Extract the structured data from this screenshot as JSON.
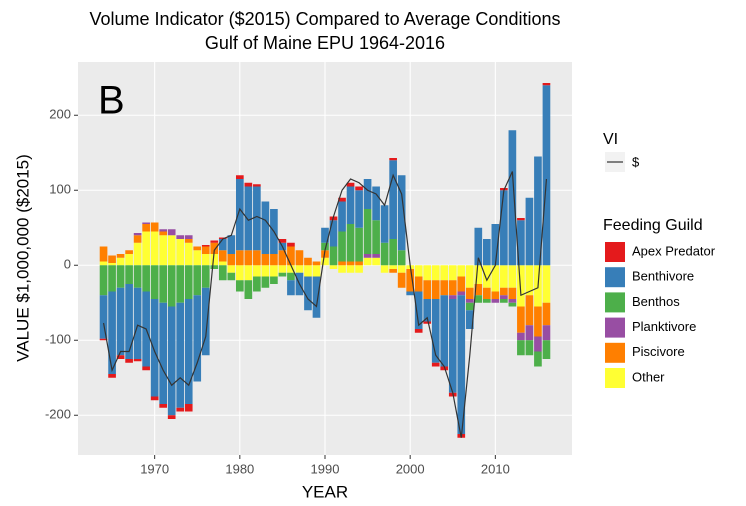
{
  "chart_data": {
    "type": "bar",
    "title": "Volume Indicator ($2015) Compared to Average Conditions",
    "subtitle": "Gulf of Maine EPU 1964-2016",
    "annotation": "B",
    "x_label": "YEAR",
    "y_label": "VALUE $1,000,000 ($2015)",
    "x": [
      1964,
      1965,
      1966,
      1967,
      1968,
      1969,
      1970,
      1971,
      1972,
      1973,
      1974,
      1975,
      1976,
      1977,
      1978,
      1979,
      1980,
      1981,
      1982,
      1983,
      1984,
      1985,
      1986,
      1987,
      1988,
      1989,
      1990,
      1991,
      1992,
      1993,
      1994,
      1995,
      1996,
      1997,
      1998,
      1999,
      2000,
      2001,
      2002,
      2003,
      2004,
      2005,
      2006,
      2007,
      2008,
      2009,
      2010,
      2011,
      2012,
      2013,
      2014,
      2015,
      2016
    ],
    "xlim": [
      1961,
      2019
    ],
    "xticks": [
      1970,
      1980,
      1990,
      2000,
      2010
    ],
    "ylim": [
      -253,
      271
    ],
    "yticks": [
      -200,
      -100,
      0,
      100,
      200
    ],
    "grid": true,
    "stacked": true,
    "legend_title": "Feeding Guild",
    "series": [
      {
        "name": "Apex Predator",
        "color": "#e41a1c",
        "values": [
          -2,
          -5,
          -5,
          -5,
          -3,
          -5,
          -5,
          -5,
          -5,
          -5,
          -10,
          0,
          2,
          3,
          2,
          0,
          5,
          5,
          3,
          0,
          0,
          5,
          5,
          0,
          0,
          0,
          0,
          5,
          5,
          5,
          5,
          0,
          0,
          0,
          3,
          0,
          0,
          -5,
          -3,
          -5,
          -5,
          -5,
          -5,
          0,
          0,
          0,
          0,
          3,
          0,
          3,
          0,
          0,
          3
        ]
      },
      {
        "name": "Benthivore",
        "color": "#377eb8",
        "values": [
          -58,
          -110,
          -90,
          -100,
          -95,
          -100,
          -130,
          -135,
          -145,
          -140,
          -140,
          -115,
          -90,
          0,
          15,
          25,
          95,
          85,
          85,
          70,
          60,
          10,
          -20,
          -30,
          -45,
          -55,
          20,
          35,
          40,
          50,
          50,
          40,
          45,
          50,
          105,
          100,
          -5,
          -50,
          -30,
          -85,
          -95,
          -125,
          -185,
          -25,
          50,
          35,
          55,
          100,
          180,
          60,
          90,
          145,
          240
        ]
      },
      {
        "name": "Benthos",
        "color": "#4daf4a",
        "values": [
          -40,
          -35,
          -30,
          -25,
          -30,
          -35,
          -45,
          -50,
          -55,
          -50,
          -45,
          -40,
          -30,
          -5,
          -20,
          -10,
          -15,
          -25,
          -20,
          -15,
          -10,
          -5,
          -10,
          0,
          0,
          0,
          10,
          25,
          40,
          50,
          45,
          60,
          45,
          30,
          35,
          20,
          0,
          0,
          0,
          0,
          0,
          0,
          0,
          -10,
          -10,
          -5,
          0,
          -5,
          -5,
          -20,
          -20,
          -20,
          -25
        ]
      },
      {
        "name": "Planktivore",
        "color": "#984ea3",
        "values": [
          0,
          0,
          0,
          0,
          3,
          2,
          0,
          3,
          8,
          5,
          5,
          0,
          0,
          0,
          0,
          0,
          0,
          0,
          0,
          0,
          0,
          0,
          0,
          0,
          0,
          0,
          0,
          0,
          0,
          0,
          0,
          5,
          5,
          0,
          0,
          0,
          0,
          0,
          0,
          0,
          0,
          -5,
          -5,
          -5,
          0,
          0,
          -5,
          -5,
          -5,
          -10,
          -20,
          -20,
          -20
        ]
      },
      {
        "name": "Piscivore",
        "color": "#ff7f00",
        "values": [
          20,
          10,
          5,
          5,
          10,
          10,
          12,
          5,
          0,
          0,
          5,
          5,
          10,
          15,
          15,
          15,
          20,
          20,
          20,
          15,
          15,
          20,
          25,
          20,
          10,
          5,
          10,
          0,
          5,
          5,
          5,
          0,
          0,
          0,
          -5,
          -20,
          -30,
          -20,
          -25,
          -25,
          -20,
          -20,
          -20,
          -15,
          -15,
          -15,
          -10,
          -10,
          -15,
          -35,
          -40,
          -40,
          -30
        ]
      },
      {
        "name": "Other",
        "color": "#ffff33",
        "values": [
          5,
          3,
          10,
          15,
          30,
          45,
          45,
          40,
          40,
          35,
          30,
          20,
          15,
          15,
          5,
          -10,
          -20,
          -20,
          -15,
          -15,
          -15,
          -10,
          -10,
          -10,
          -15,
          -15,
          10,
          -5,
          -10,
          -10,
          -10,
          10,
          10,
          -10,
          -5,
          -10,
          -5,
          -15,
          -20,
          -20,
          -20,
          -20,
          -15,
          -30,
          -25,
          -30,
          -35,
          -30,
          -30,
          -55,
          -40,
          -55,
          -50
        ]
      }
    ],
    "line": {
      "legend_title": "VI",
      "name": "$",
      "color": "#333333",
      "values": [
        -77,
        -140,
        -115,
        -115,
        -80,
        -85,
        -115,
        -140,
        -160,
        -150,
        -160,
        -130,
        -95,
        20,
        35,
        40,
        75,
        60,
        65,
        60,
        45,
        25,
        0,
        -25,
        -45,
        -55,
        20,
        65,
        100,
        115,
        110,
        100,
        95,
        80,
        120,
        95,
        0,
        -80,
        -70,
        -120,
        -135,
        -170,
        -230,
        -120,
        10,
        -20,
        0,
        100,
        125,
        -40,
        -35,
        -30,
        115
      ]
    }
  }
}
